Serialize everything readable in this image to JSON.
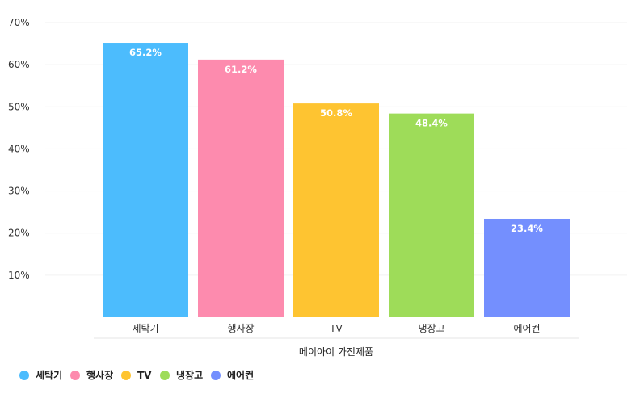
{
  "chart_data": {
    "type": "bar",
    "categories": [
      "세탁기",
      "행사장",
      "TV",
      "냉장고",
      "에어컨"
    ],
    "values": [
      65.2,
      61.2,
      50.8,
      48.4,
      23.4
    ],
    "data_labels": [
      "65.2%",
      "61.2%",
      "50.8%",
      "48.4%",
      "23.4%"
    ],
    "colors": [
      "#4cbcfd",
      "#fd8bae",
      "#fec431",
      "#9edc59",
      "#748ffe"
    ],
    "title": "",
    "xlabel": "메이아이 가전제품",
    "ylabel": "",
    "ylim": [
      0,
      70
    ],
    "yticks": [
      10,
      20,
      30,
      40,
      50,
      60,
      70
    ],
    "ytick_labels": [
      "10%",
      "20%",
      "30%",
      "40%",
      "50%",
      "60%",
      "70%"
    ],
    "grid": true,
    "legend": {
      "placement": "bottom-left",
      "entries": [
        "세탁기",
        "행사장",
        "TV",
        "냉장고",
        "에어컨"
      ]
    }
  }
}
